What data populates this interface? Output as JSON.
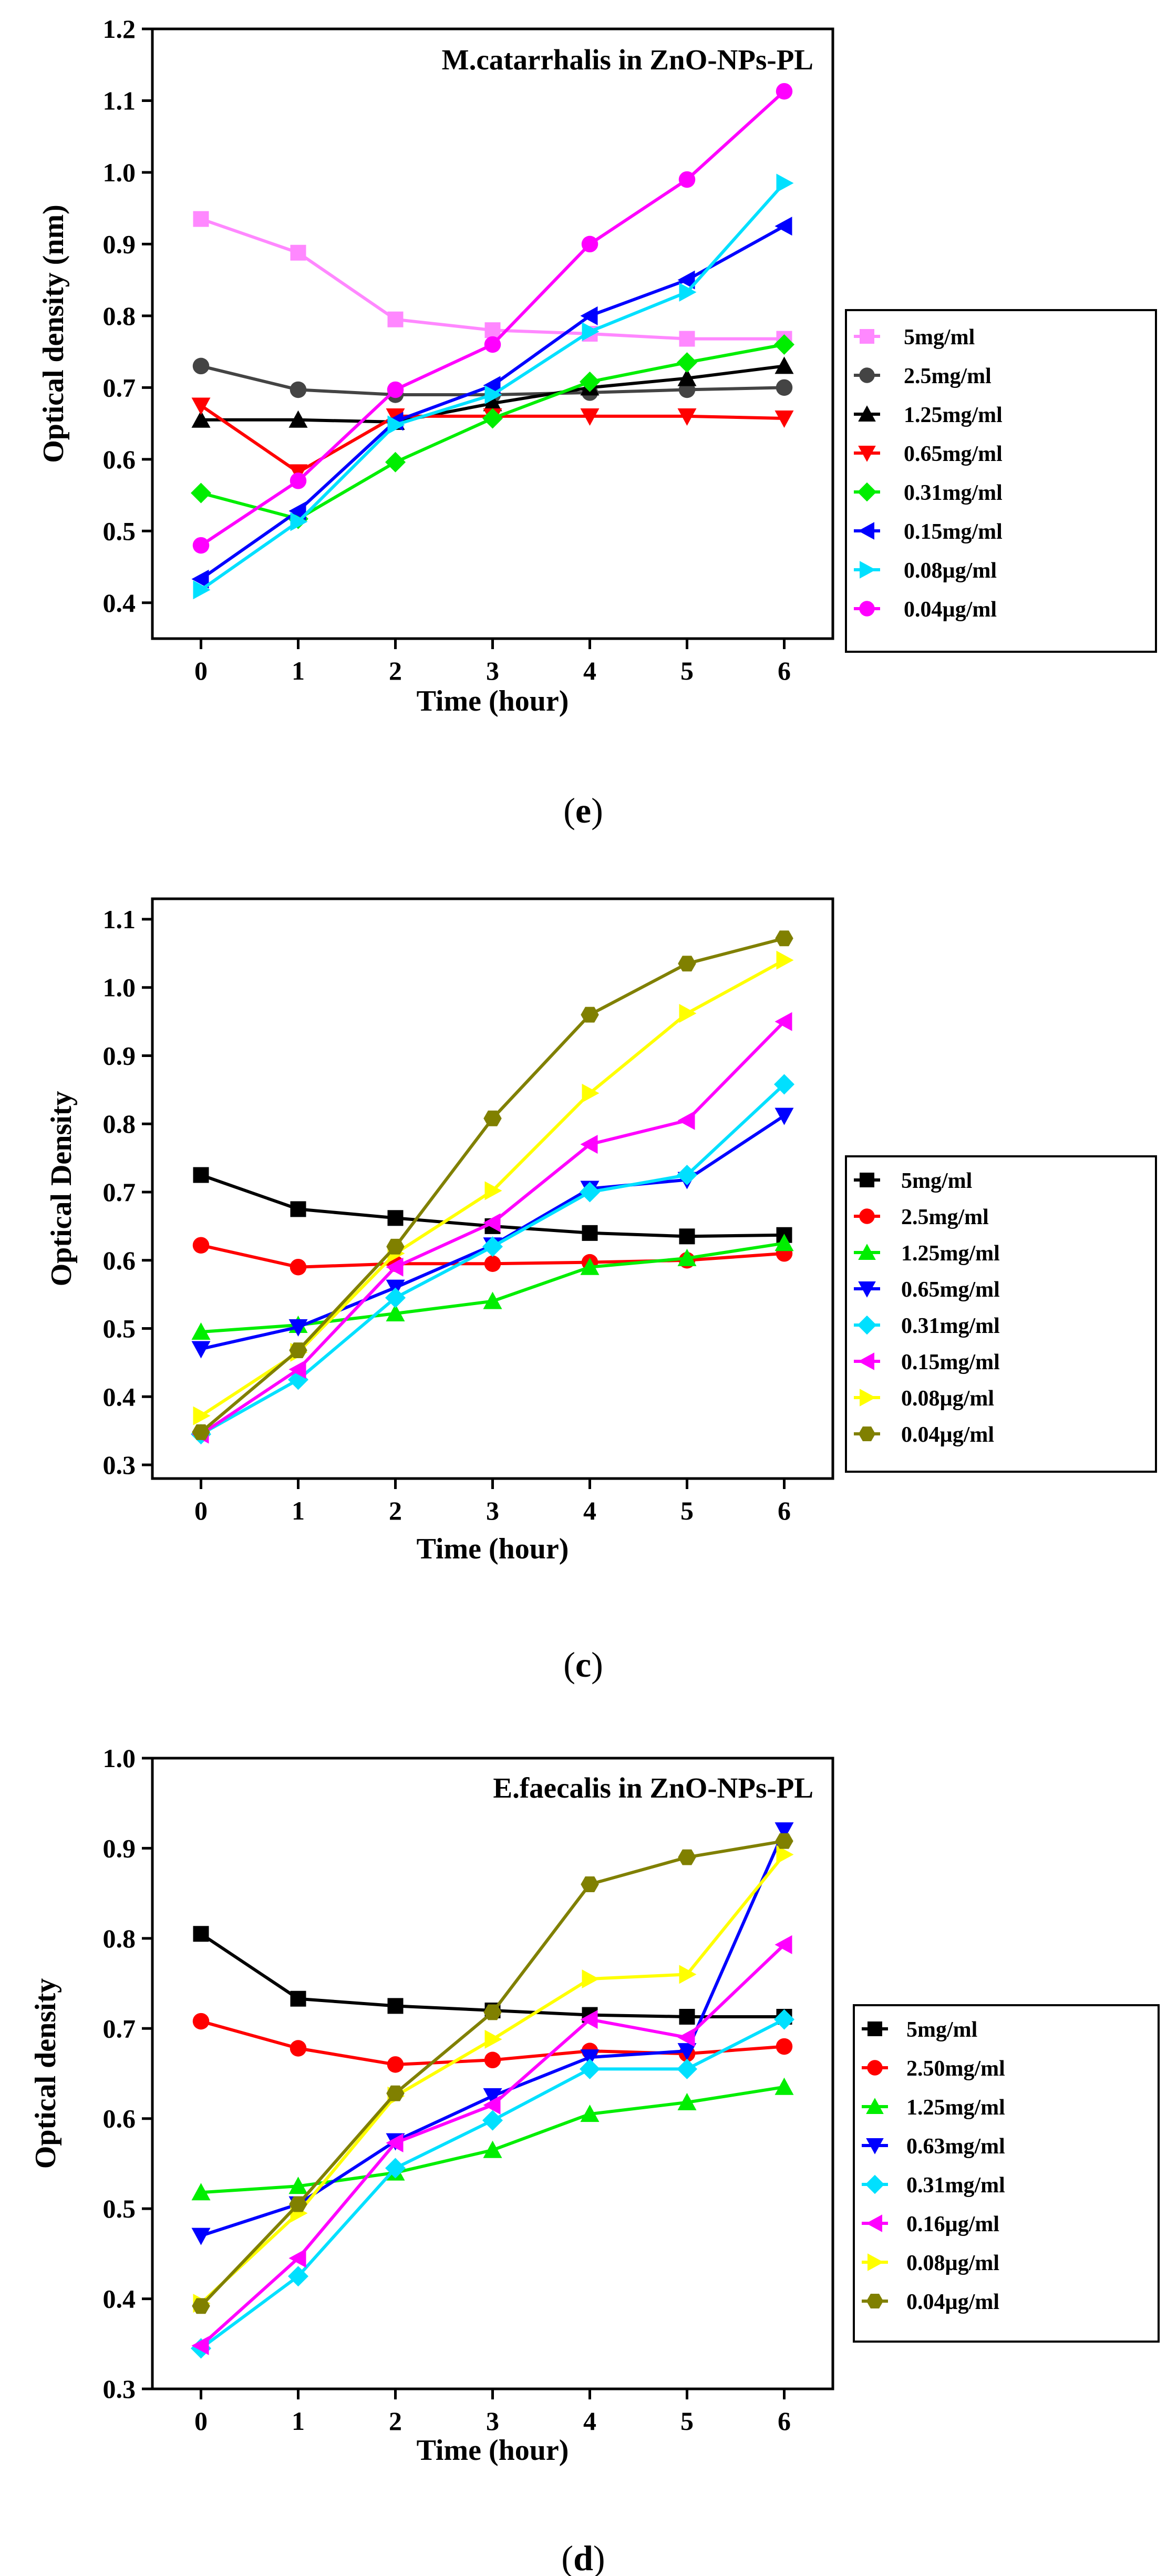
{
  "chart_data": [
    {
      "type": "line",
      "panel_label": "e",
      "title": "M.catarrhalis in ZnO-NPs-PL",
      "xlabel": "Time (hour)",
      "ylabel": "Optical density (nm)",
      "x": [
        0,
        1,
        2,
        3,
        4,
        5,
        6
      ],
      "xlim": [
        -0.5,
        6.5
      ],
      "ylim": [
        0.35,
        1.2
      ],
      "yticks": [
        0.4,
        0.5,
        0.6,
        0.7,
        0.8,
        0.9,
        1.0,
        1.1,
        1.2
      ],
      "ytick_labels": [
        "0.4",
        "0.5",
        "0.6",
        "0.7",
        "0.8",
        "0.9",
        "1.0",
        "1.1",
        "1.2"
      ],
      "legend_position": "right",
      "series": [
        {
          "name": "5mg/ml",
          "color": "#ff88ff",
          "marker": "square",
          "values": [
            0.935,
            0.888,
            0.795,
            0.78,
            0.775,
            0.768,
            0.768
          ]
        },
        {
          "name": "2.5mg/ml",
          "color": "#444444",
          "marker": "circle",
          "values": [
            0.73,
            0.697,
            0.69,
            0.69,
            0.693,
            0.697,
            0.7
          ]
        },
        {
          "name": "1.25mg/ml",
          "color": "#000000",
          "marker": "triangle-up",
          "values": [
            0.655,
            0.655,
            0.652,
            0.678,
            0.7,
            0.713,
            0.73
          ]
        },
        {
          "name": "0.65mg/ml",
          "color": "#ff0000",
          "marker": "triangle-down",
          "values": [
            0.675,
            0.582,
            0.66,
            0.66,
            0.66,
            0.66,
            0.657
          ]
        },
        {
          "name": "0.31mg/ml",
          "color": "#00ee00",
          "marker": "diamond",
          "values": [
            0.553,
            0.517,
            0.596,
            0.657,
            0.708,
            0.735,
            0.76
          ]
        },
        {
          "name": "0.15mg/ml",
          "color": "#0000ff",
          "marker": "triangle-left",
          "values": [
            0.433,
            0.528,
            0.653,
            0.703,
            0.8,
            0.85,
            0.925
          ]
        },
        {
          "name": "0.08µg/ml",
          "color": "#00e0ff",
          "marker": "triangle-right",
          "values": [
            0.418,
            0.513,
            0.648,
            0.69,
            0.778,
            0.833,
            0.985
          ]
        },
        {
          "name": "0.04µg/ml",
          "color": "#ff00ff",
          "marker": "circle",
          "values": [
            0.48,
            0.57,
            0.697,
            0.76,
            0.9,
            0.99,
            1.113
          ]
        }
      ]
    },
    {
      "type": "line",
      "panel_label": "c",
      "title": "",
      "xlabel": "Time (hour)",
      "ylabel": "Optical Density",
      "x": [
        0,
        1,
        2,
        3,
        4,
        5,
        6
      ],
      "xlim": [
        -0.5,
        6.5
      ],
      "ylim": [
        0.28,
        1.13
      ],
      "yticks": [
        0.3,
        0.4,
        0.5,
        0.6,
        0.7,
        0.8,
        0.9,
        1.0,
        1.1
      ],
      "ytick_labels": [
        "0.3",
        "0.4",
        "0.5",
        "0.6",
        "0.7",
        "0.8",
        "0.9",
        "1.0",
        "1.1"
      ],
      "legend_position": "right",
      "series": [
        {
          "name": "5mg/ml",
          "color": "#000000",
          "marker": "square",
          "values": [
            0.725,
            0.675,
            0.662,
            0.65,
            0.64,
            0.635,
            0.637
          ]
        },
        {
          "name": "2.5mg/ml",
          "color": "#ff0000",
          "marker": "circle",
          "values": [
            0.622,
            0.59,
            0.595,
            0.595,
            0.597,
            0.6,
            0.61
          ]
        },
        {
          "name": "1.25mg/ml",
          "color": "#00ee00",
          "marker": "triangle-up",
          "values": [
            0.495,
            0.505,
            0.522,
            0.54,
            0.59,
            0.603,
            0.625
          ]
        },
        {
          "name": "0.65mg/ml",
          "color": "#0000ff",
          "marker": "triangle-down",
          "values": [
            0.47,
            0.502,
            0.56,
            0.622,
            0.705,
            0.718,
            0.812
          ]
        },
        {
          "name": "0.31mg/ml",
          "color": "#00e0ff",
          "marker": "diamond",
          "values": [
            0.345,
            0.425,
            0.545,
            0.62,
            0.7,
            0.725,
            0.858
          ]
        },
        {
          "name": "0.15mg/ml",
          "color": "#ff00ff",
          "marker": "triangle-left",
          "values": [
            0.345,
            0.44,
            0.59,
            0.655,
            0.77,
            0.805,
            0.95
          ]
        },
        {
          "name": "0.08µg/ml",
          "color": "#ffff00",
          "marker": "triangle-right",
          "values": [
            0.372,
            0.465,
            0.61,
            0.702,
            0.845,
            0.962,
            1.04
          ]
        },
        {
          "name": "0.04µg/ml",
          "color": "#808000",
          "marker": "hexagon",
          "values": [
            0.348,
            0.468,
            0.62,
            0.808,
            0.96,
            1.035,
            1.072
          ]
        }
      ]
    },
    {
      "type": "line",
      "panel_label": "d",
      "title": "E.faecalis in ZnO-NPs-PL",
      "xlabel": "Time (hour)",
      "ylabel": "Optical density",
      "x": [
        0,
        1,
        2,
        3,
        4,
        5,
        6
      ],
      "xlim": [
        -0.5,
        6.5
      ],
      "ylim": [
        0.3,
        1.0
      ],
      "yticks": [
        0.3,
        0.4,
        0.5,
        0.6,
        0.7,
        0.8,
        0.9,
        1.0
      ],
      "ytick_labels": [
        "0.3",
        "0.4",
        "0.5",
        "0.6",
        "0.7",
        "0.8",
        "0.9",
        "1.0"
      ],
      "legend_position": "right",
      "series": [
        {
          "name": "5mg/ml",
          "color": "#000000",
          "marker": "square",
          "values": [
            0.805,
            0.733,
            0.725,
            0.72,
            0.715,
            0.713,
            0.713
          ]
        },
        {
          "name": "2.50mg/ml",
          "color": "#ff0000",
          "marker": "circle",
          "values": [
            0.708,
            0.678,
            0.66,
            0.665,
            0.675,
            0.672,
            0.68
          ]
        },
        {
          "name": "1.25mg/ml",
          "color": "#00ee00",
          "marker": "triangle-up",
          "values": [
            0.518,
            0.525,
            0.54,
            0.565,
            0.605,
            0.618,
            0.635
          ]
        },
        {
          "name": "0.63mg/ml",
          "color": "#0000ff",
          "marker": "triangle-down",
          "values": [
            0.47,
            0.505,
            0.575,
            0.625,
            0.668,
            0.675,
            0.92
          ]
        },
        {
          "name": "0.31mg/ml",
          "color": "#00e0ff",
          "marker": "diamond",
          "values": [
            0.345,
            0.425,
            0.545,
            0.598,
            0.655,
            0.655,
            0.71
          ]
        },
        {
          "name": "0.16µg/ml",
          "color": "#ff00ff",
          "marker": "triangle-left",
          "values": [
            0.348,
            0.445,
            0.573,
            0.615,
            0.71,
            0.69,
            0.793
          ]
        },
        {
          "name": "0.08µg/ml",
          "color": "#ffff00",
          "marker": "triangle-right",
          "values": [
            0.395,
            0.495,
            0.625,
            0.688,
            0.755,
            0.76,
            0.893
          ]
        },
        {
          "name": "0.04µg/ml",
          "color": "#808000",
          "marker": "hexagon",
          "values": [
            0.392,
            0.505,
            0.628,
            0.718,
            0.86,
            0.89,
            0.908
          ]
        }
      ]
    }
  ]
}
